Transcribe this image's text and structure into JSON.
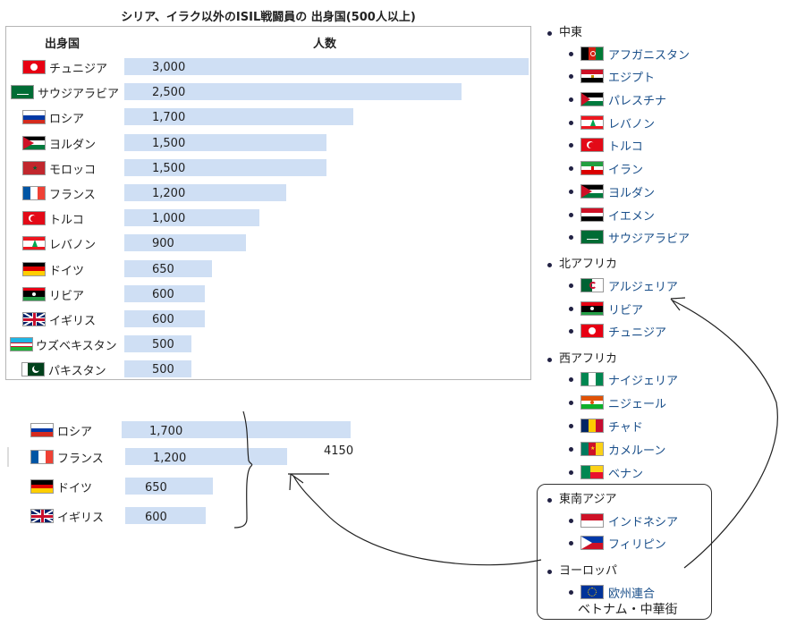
{
  "chart_data": {
    "type": "bar",
    "title": "シリア、イラク以外のISIL戦闘員の 出身国(500人以上)",
    "columns": [
      "出身国",
      "人数"
    ],
    "categories": [
      "チュニジア",
      "サウジアラビア",
      "ロシア",
      "ヨルダン",
      "モロッコ",
      "フランス",
      "トルコ",
      "レバノン",
      "ドイツ",
      "リビア",
      "イギリス",
      "ウズベキスタン",
      "パキスタン"
    ],
    "values": [
      3000,
      2500,
      1700,
      1500,
      1500,
      1200,
      1000,
      900,
      650,
      600,
      600,
      500,
      500
    ],
    "value_labels": [
      "3,000",
      "2,500",
      "1,700",
      "1,500",
      "1,500",
      "1,200",
      "1,000",
      "900",
      "650",
      "600",
      "600",
      "500",
      "500"
    ],
    "xlim": [
      0,
      3100
    ]
  },
  "rows": [
    {
      "name": "チュニジア",
      "value_label": "3,000",
      "flag": "tunisia"
    },
    {
      "name": "サウジアラビア",
      "value_label": "2,500",
      "flag": "saudi"
    },
    {
      "name": "ロシア",
      "value_label": "1,700",
      "flag": "russia"
    },
    {
      "name": "ヨルダン",
      "value_label": "1,500",
      "flag": "jordan"
    },
    {
      "name": "モロッコ",
      "value_label": "1,500",
      "flag": "morocco"
    },
    {
      "name": "フランス",
      "value_label": "1,200",
      "flag": "france"
    },
    {
      "name": "トルコ",
      "value_label": "1,000",
      "flag": "turkey"
    },
    {
      "name": "レバノン",
      "value_label": "900",
      "flag": "lebanon"
    },
    {
      "name": "ドイツ",
      "value_label": "650",
      "flag": "germany"
    },
    {
      "name": "リビア",
      "value_label": "600",
      "flag": "libya"
    },
    {
      "name": "イギリス",
      "value_label": "600",
      "flag": "uk"
    },
    {
      "name": "ウズベキスタン",
      "value_label": "500",
      "flag": "uzbek"
    },
    {
      "name": "パキスタン",
      "value_label": "500",
      "flag": "pakistan"
    }
  ],
  "sub_chart": {
    "categories": [
      "ロシア",
      "フランス",
      "ドイツ",
      "イギリス"
    ],
    "values": [
      1700,
      1200,
      650,
      600
    ],
    "value_labels": [
      "1,700",
      "1,200",
      "650",
      "600"
    ],
    "flags": [
      "russia",
      "france",
      "germany",
      "uk"
    ],
    "total_note": "4150"
  },
  "sidebar": [
    {
      "heading": "中東",
      "items": [
        {
          "label": "アフガニスタン",
          "flag": "afghan"
        },
        {
          "label": "エジプト",
          "flag": "egypt"
        },
        {
          "label": "パレスチナ",
          "flag": "palestine"
        },
        {
          "label": "レバノン",
          "flag": "lebanon"
        },
        {
          "label": "トルコ",
          "flag": "turkey"
        },
        {
          "label": "イラン",
          "flag": "iran"
        },
        {
          "label": "ヨルダン",
          "flag": "jordan"
        },
        {
          "label": "イエメン",
          "flag": "yemen"
        },
        {
          "label": "サウジアラビア",
          "flag": "saudi"
        }
      ]
    },
    {
      "heading": "北アフリカ",
      "items": [
        {
          "label": "アルジェリア",
          "flag": "algeria"
        },
        {
          "label": "リビア",
          "flag": "libya"
        },
        {
          "label": "チュニジア",
          "flag": "tunisia"
        }
      ]
    },
    {
      "heading": "西アフリカ",
      "items": [
        {
          "label": "ナイジェリア",
          "flag": "nigeria"
        },
        {
          "label": "ニジェール",
          "flag": "niger"
        },
        {
          "label": "チャド",
          "flag": "chad"
        },
        {
          "label": "カメルーン",
          "flag": "cameroon"
        },
        {
          "label": "ベナン",
          "flag": "benin"
        }
      ]
    },
    {
      "heading": "東南アジア",
      "items": [
        {
          "label": "インドネシア",
          "flag": "indonesia"
        },
        {
          "label": "フィリピン",
          "flag": "philippines"
        }
      ]
    },
    {
      "heading": "ヨーロッパ",
      "items": [
        {
          "label": "欧州連合",
          "flag": "eu"
        }
      ]
    }
  ],
  "handwritten_note": "ベトナム・中華街",
  "colors": {
    "bar": "#cfdff4",
    "link": "#1a4f8a"
  }
}
